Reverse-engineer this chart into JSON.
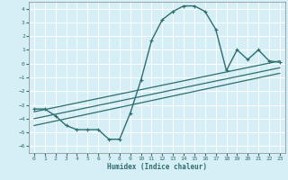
{
  "xlabel": "Humidex (Indice chaleur)",
  "bg_color": "#d6eef5",
  "grid_color": "#ffffff",
  "line_color": "#2d6e6e",
  "xlim": [
    -0.5,
    23.5
  ],
  "ylim": [
    -6.5,
    4.5
  ],
  "xticks": [
    0,
    1,
    2,
    3,
    4,
    5,
    6,
    7,
    8,
    9,
    10,
    11,
    12,
    13,
    14,
    15,
    16,
    17,
    18,
    19,
    20,
    21,
    22,
    23
  ],
  "yticks": [
    -6,
    -5,
    -4,
    -3,
    -2,
    -1,
    0,
    1,
    2,
    3,
    4
  ],
  "main_curve_x": [
    0,
    1,
    2,
    3,
    4,
    5,
    6,
    7,
    8,
    9,
    10,
    11,
    12,
    13,
    14,
    15,
    16,
    17,
    18,
    19,
    20,
    21,
    22,
    23
  ],
  "main_curve_y": [
    -3.3,
    -3.3,
    -3.8,
    -4.5,
    -4.8,
    -4.8,
    -4.8,
    -5.5,
    -5.5,
    -3.6,
    -1.2,
    1.7,
    3.2,
    3.8,
    4.2,
    4.2,
    3.8,
    2.5,
    -0.5,
    1.0,
    0.3,
    1.0,
    0.2,
    0.1
  ],
  "line1_x": [
    0,
    23
  ],
  "line1_y": [
    -3.5,
    0.2
  ],
  "line2_x": [
    0,
    23
  ],
  "line2_y": [
    -4.0,
    -0.3
  ],
  "line3_x": [
    0,
    23
  ],
  "line3_y": [
    -4.5,
    -0.7
  ]
}
